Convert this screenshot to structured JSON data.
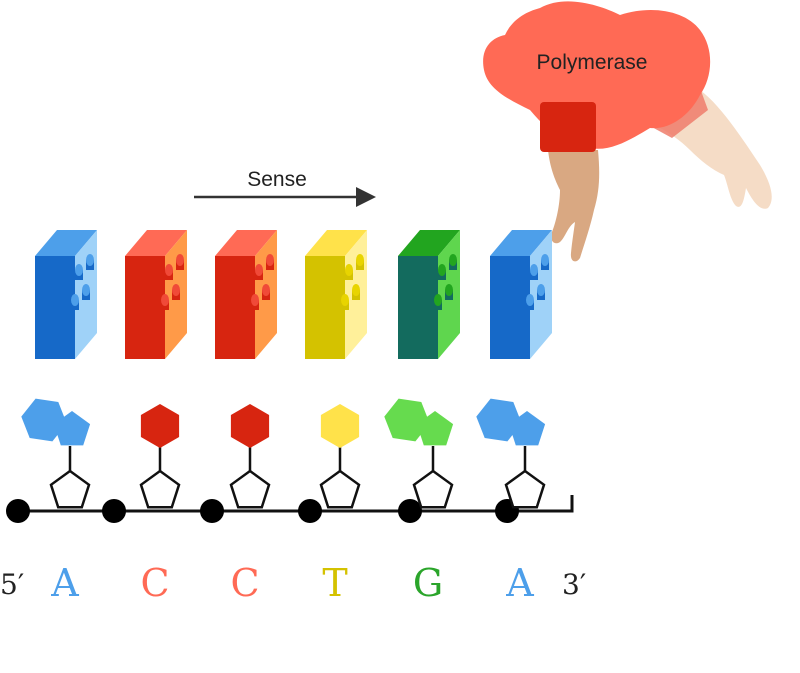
{
  "polymerase": {
    "label": "Polymerase",
    "color": "#FF6A55"
  },
  "direction": {
    "label": "Sense"
  },
  "strand": {
    "five_prime": "5′",
    "three_prime": "3′",
    "bases": [
      {
        "letter": "A",
        "type": "purine",
        "color": "#4D9FEA"
      },
      {
        "letter": "C",
        "type": "pyrimidine",
        "color": "#FF6A55"
      },
      {
        "letter": "C",
        "type": "pyrimidine",
        "color": "#FF6A55"
      },
      {
        "letter": "T",
        "type": "pyrimidine",
        "color": "#D4C200"
      },
      {
        "letter": "G",
        "type": "purine",
        "color": "#2BA52B"
      },
      {
        "letter": "A",
        "type": "purine",
        "color": "#4D9FEA"
      }
    ]
  },
  "bricks": [
    {
      "base": "A",
      "front": "#1669C8",
      "side": "#9FD2F8",
      "top": "#4D9FEA",
      "stud": "#1669C8",
      "studTop": "#4D9FEA"
    },
    {
      "base": "C",
      "front": "#D72510",
      "side": "#FF9A48",
      "top": "#FF6A55",
      "stud": "#D72510",
      "studTop": "#F04A38"
    },
    {
      "base": "C",
      "front": "#D72510",
      "side": "#FF9A48",
      "top": "#FF6A55",
      "stud": "#D72510",
      "studTop": "#F04A38"
    },
    {
      "base": "T",
      "front": "#D4C200",
      "side": "#FFF09A",
      "top": "#FFE24A",
      "stud": "#D4C200",
      "studTop": "#E8D400"
    },
    {
      "base": "G",
      "front": "#136B5E",
      "side": "#5FD64E",
      "top": "#22A51F",
      "stud": "#136B5E",
      "studTop": "#22A51F"
    },
    {
      "base": "A",
      "front": "#1669C8",
      "side": "#9FD2F8",
      "top": "#4D9FEA",
      "stud": "#1669C8",
      "studTop": "#4D9FEA"
    }
  ],
  "nucleobase_colors": {
    "A": "#4D9FEA",
    "C": "#D72510",
    "T": "#FFE24A",
    "G": "#66DB4E"
  }
}
